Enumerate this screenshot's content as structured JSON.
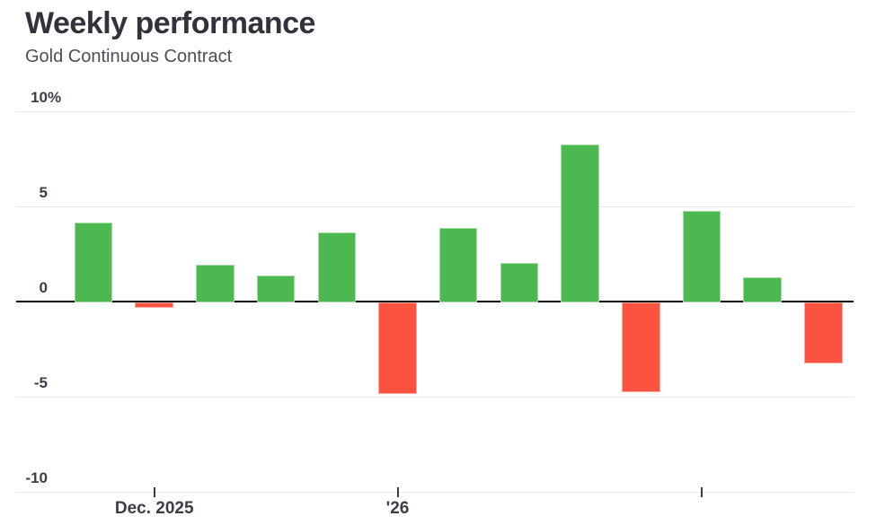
{
  "header": {
    "title": "Weekly performance",
    "subtitle": "Gold Continuous Contract"
  },
  "chart_data": {
    "type": "bar",
    "title": "Weekly performance",
    "subtitle": "Gold Continuous Contract",
    "unit": "%",
    "values": [
      4.2,
      -0.3,
      2.0,
      1.4,
      3.7,
      -4.8,
      3.9,
      2.1,
      8.3,
      -4.7,
      4.8,
      1.3,
      -3.2
    ],
    "x_ticks": [
      {
        "bar_index": 1,
        "label": "Dec. 2025"
      },
      {
        "bar_index": 5,
        "label": "'26"
      },
      {
        "bar_index": 10,
        "label": ""
      }
    ],
    "y_ticks": [
      {
        "value": 10,
        "label": "10",
        "suffix": "%"
      },
      {
        "value": 5,
        "label": "5"
      },
      {
        "value": 0,
        "label": "0"
      },
      {
        "value": -5,
        "label": "-5"
      },
      {
        "value": -10,
        "label": "-10"
      }
    ],
    "ylim": [
      -10,
      10
    ],
    "grid": true,
    "legend": "none",
    "colors": {
      "positive": "#4cb950",
      "positive_border": "#a6dba5",
      "negative": "#fc5340",
      "negative_border": "#fdab9f",
      "zero_line": "#000000",
      "gridline": "#e8e8e8",
      "axis_text": "#3a3f46"
    }
  }
}
